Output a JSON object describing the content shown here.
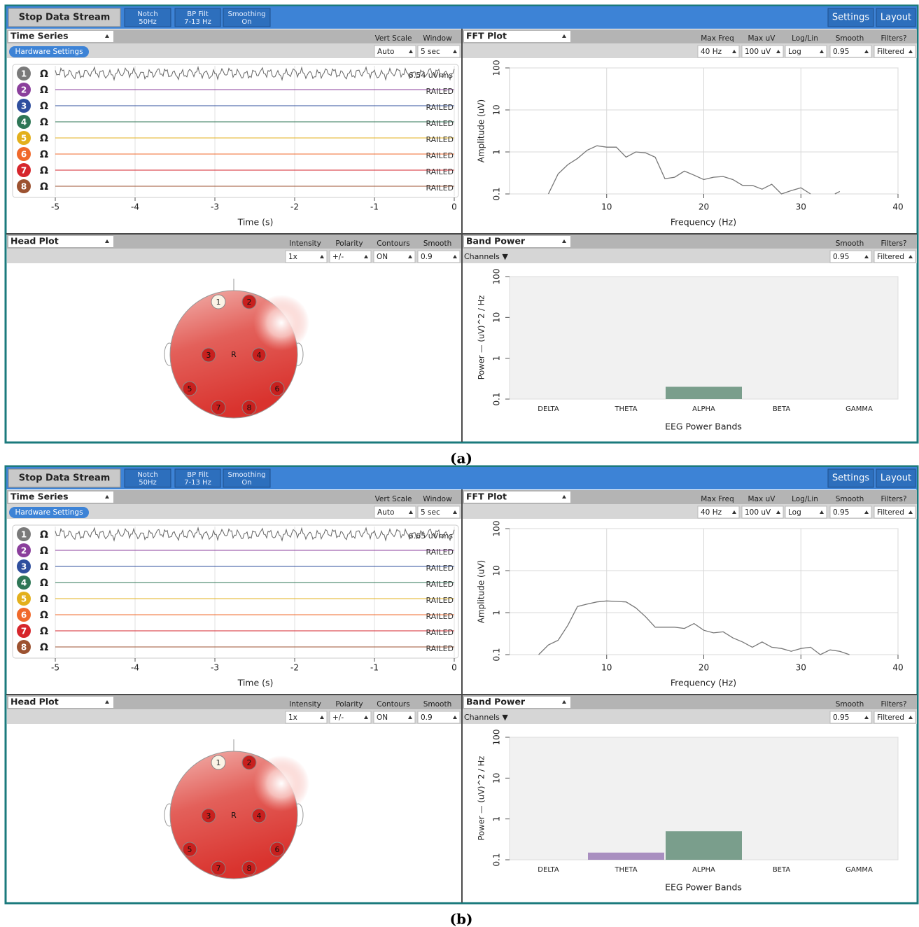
{
  "ui": {
    "toolbar": {
      "stop": "Stop Data Stream",
      "notch": [
        "Notch",
        "50Hz"
      ],
      "bp": [
        "BP Filt",
        "7-13 Hz"
      ],
      "smoothing": [
        "Smoothing",
        "On"
      ],
      "settings": "Settings",
      "layout": "Layout"
    },
    "time_series": {
      "title": "Time Series",
      "vert_scale": "Vert Scale",
      "window": "Window",
      "hardware": "Hardware Settings",
      "vert_value": "Auto",
      "window_value": "5 sec",
      "channels": [
        {
          "label": "1",
          "color": "#7a7a7a"
        },
        {
          "label": "2",
          "color": "#8b3f9c"
        },
        {
          "label": "3",
          "color": "#2f4f9e"
        },
        {
          "label": "4",
          "color": "#2e7656"
        },
        {
          "label": "5",
          "color": "#e3b01c"
        },
        {
          "label": "6",
          "color": "#f0692b"
        },
        {
          "label": "7",
          "color": "#d6262c"
        },
        {
          "label": "8",
          "color": "#9c5230"
        }
      ],
      "ohm": "Ω",
      "railed": "RAILED",
      "xlabel": "Time (s)",
      "xlim": [
        -5,
        0
      ],
      "xticks": [
        -5,
        -4,
        -3,
        -2,
        -1,
        0
      ]
    },
    "fft": {
      "title": "FFT Plot",
      "max_freq": "Max Freq",
      "max_uv": "Max uV",
      "log_lin": "Log/Lin",
      "smooth": "Smooth",
      "filters": "Filters?",
      "max_freq_value": "40 Hz",
      "max_uv_value": "100 uV",
      "log_lin_value": "Log",
      "smooth_value": "0.95",
      "filters_value": "Filtered",
      "xlabel": "Frequency (Hz)",
      "ylabel": "Amplitude (uV)",
      "xlim": [
        0,
        40
      ],
      "xticks": [
        10,
        20,
        30,
        40
      ],
      "ylim": [
        0.1,
        100
      ],
      "yticks": [
        0.1,
        1,
        10,
        100
      ],
      "log_scale": true,
      "color": "#777777"
    },
    "head_plot": {
      "title": "Head Plot",
      "intensity": "Intensity",
      "polarity": "Polarity",
      "contours": "Contours",
      "smooth": "Smooth",
      "intensity_value": "1x",
      "polarity_value": "+/-",
      "contours_value": "ON",
      "smooth_value": "0.9",
      "electrodes": [
        "1",
        "2",
        "3",
        "4",
        "5",
        "6",
        "7",
        "8"
      ],
      "reference": "R"
    },
    "band_power": {
      "title": "Band Power",
      "smooth": "Smooth",
      "filters": "Filters?",
      "channels": "Channels ▼",
      "smooth_value": "0.95",
      "filters_value": "Filtered",
      "categories": [
        "DELTA",
        "THETA",
        "ALPHA",
        "BETA",
        "GAMMA"
      ],
      "colors": [
        "#6f8fbf",
        "#a98fc0",
        "#7a9e8c",
        "#d2a86a",
        "#c07070"
      ],
      "xlabel": "EEG Power Bands",
      "ylabel": "Power — (uV)^2 / Hz",
      "ylim": [
        0.1,
        100
      ],
      "yticks": [
        0.1,
        1,
        10,
        100
      ],
      "log_scale": true
    }
  },
  "panels": [
    {
      "caption": "(a)",
      "rms": "6.54 uVrms",
      "fft_x": [
        4,
        5,
        6,
        7,
        8,
        9,
        10,
        11,
        12,
        13,
        14,
        15,
        16,
        17,
        18,
        19,
        20,
        21,
        22,
        23,
        24,
        25,
        26,
        27,
        28,
        29,
        30,
        31,
        32,
        33.5,
        34
      ],
      "fft_values": [
        0.1,
        0.3,
        0.5,
        0.7,
        1.1,
        1.4,
        1.3,
        1.3,
        0.75,
        1.0,
        0.95,
        0.75,
        0.23,
        0.25,
        0.35,
        0.28,
        0.22,
        0.25,
        0.26,
        0.22,
        0.16,
        0.16,
        0.13,
        0.17,
        0.1,
        0.12,
        0.14,
        0.1,
        null,
        0.1,
        0.115
      ],
      "band_values": [
        null,
        null,
        0.2,
        null,
        null
      ]
    },
    {
      "caption": "(b)",
      "rms": "6.65 uVrms",
      "fft_x": [
        3,
        4,
        5,
        6,
        7,
        8,
        9,
        10,
        11,
        12,
        13,
        14,
        15,
        16,
        17,
        18,
        19,
        20,
        21,
        22,
        23,
        24,
        25,
        26,
        27,
        28,
        29,
        30,
        31,
        32,
        33,
        34,
        35
      ],
      "fft_values": [
        0.1,
        0.17,
        0.22,
        0.5,
        1.4,
        1.6,
        1.8,
        1.9,
        1.85,
        1.8,
        1.3,
        0.8,
        0.45,
        0.45,
        0.45,
        0.42,
        0.55,
        0.38,
        0.33,
        0.35,
        0.25,
        0.2,
        0.15,
        0.2,
        0.15,
        0.14,
        0.12,
        0.14,
        0.15,
        0.1,
        0.13,
        0.12,
        0.1
      ],
      "band_values": [
        null,
        0.15,
        0.5,
        null,
        null
      ]
    }
  ]
}
